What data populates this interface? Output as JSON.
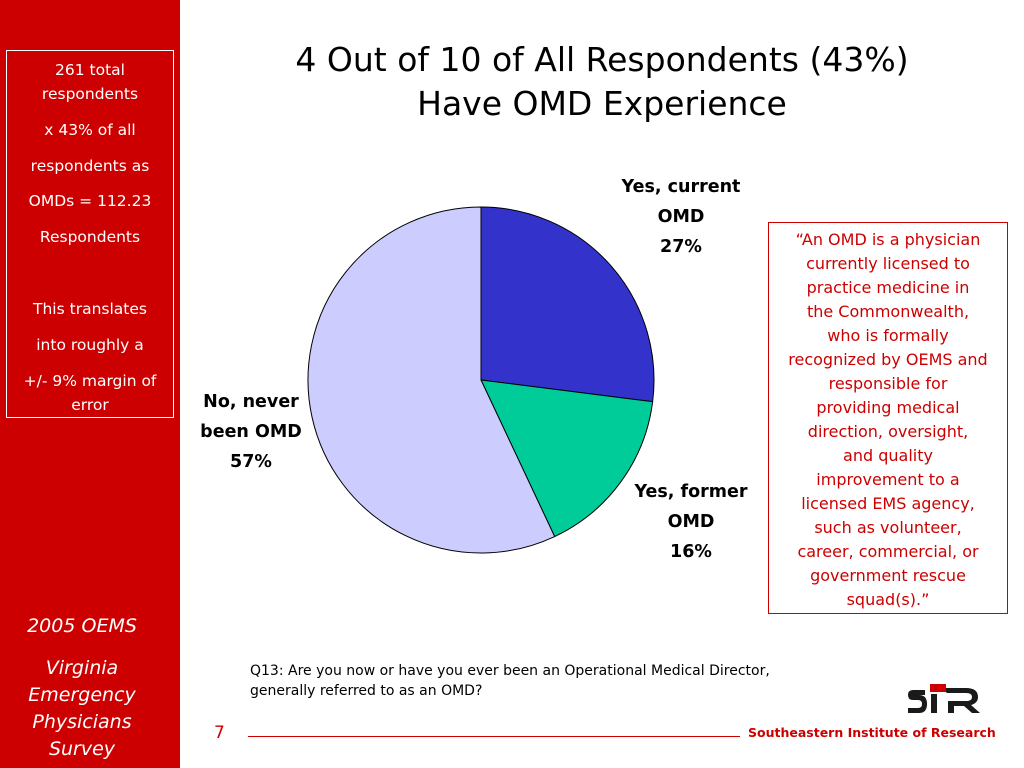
{
  "colors": {
    "brand_red": "#cc0000",
    "yes_current": "#3333cc",
    "yes_former": "#00cc99",
    "never": "#ccccff"
  },
  "sidebar": {
    "stats_lines": [
      "261 total",
      "respondents",
      "x 43% of all",
      "respondents as",
      "OMDs = 112.23",
      "Respondents",
      "This translates",
      "into roughly a",
      "+/- 9% margin of",
      "error"
    ],
    "footer_lines": [
      "2005 OEMS",
      "Virginia",
      "Emergency",
      "Physicians",
      "Survey"
    ]
  },
  "title_lines": [
    "4 Out of 10 of All Respondents (43%)",
    "Have OMD Experience"
  ],
  "chart_data": {
    "type": "pie",
    "slices": [
      {
        "label_lines": [
          "Yes, current",
          "OMD"
        ],
        "value": 27,
        "value_label": "27%",
        "color": "#3333cc"
      },
      {
        "label_lines": [
          "Yes, former",
          "OMD"
        ],
        "value": 16,
        "value_label": "16%",
        "color": "#00cc99"
      },
      {
        "label_lines": [
          "No, never",
          "been OMD"
        ],
        "value": 57,
        "value_label": "57%",
        "color": "#ccccff"
      }
    ],
    "start_angle_deg": 0,
    "direction": "clockwise"
  },
  "definition_lines": [
    "“An OMD is a physician",
    "currently licensed to",
    "practice medicine in",
    "the Commonwealth,",
    "who is formally",
    "recognized by OEMS and",
    "responsible for",
    "providing medical",
    "direction, oversight,",
    "and quality",
    "improvement to a",
    "licensed EMS agency,",
    "such as volunteer,",
    "career, commercial, or",
    "government rescue",
    "squad(s).”"
  ],
  "question_lines": [
    "Q13: Are you now or have you ever been an Operational Medical Director,",
    "generally referred to as an OMD?"
  ],
  "footer": {
    "page_number": "7",
    "org_name": "Southeastern Institute of Research",
    "logo_text": "siR"
  }
}
